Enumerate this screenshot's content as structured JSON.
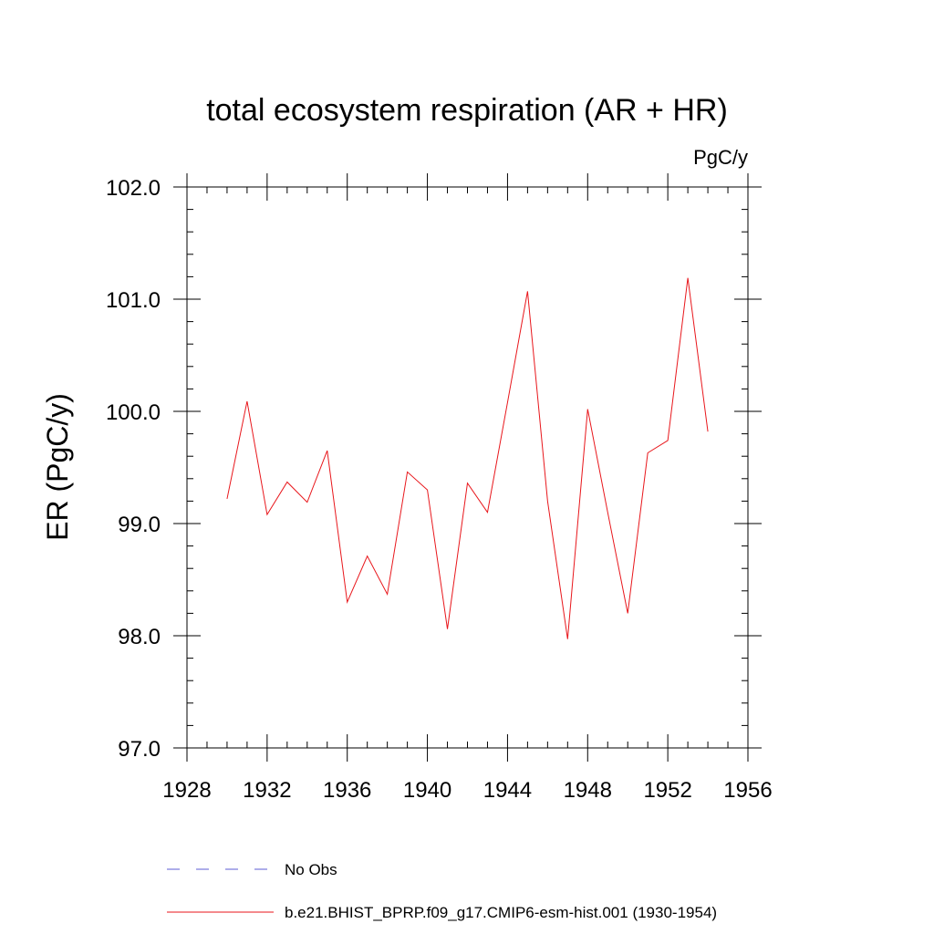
{
  "chart_data": {
    "type": "line",
    "title": "total ecosystem respiration (AR + HR)",
    "units": "PgC/y",
    "ylabel": "ER  (PgC/y)",
    "xlabel": "",
    "xlim": [
      1928,
      1956
    ],
    "ylim": [
      97.0,
      102.0
    ],
    "x_ticks": [
      1928,
      1932,
      1936,
      1940,
      1944,
      1948,
      1952,
      1956
    ],
    "x_tick_labels": [
      "1928",
      "1932",
      "1936",
      "1940",
      "1944",
      "1948",
      "1952",
      "1956"
    ],
    "y_ticks": [
      97.0,
      98.0,
      99.0,
      100.0,
      101.0,
      102.0
    ],
    "y_tick_labels": [
      "97.0",
      "98.0",
      "99.0",
      "100.0",
      "101.0",
      "102.0"
    ],
    "grid": false,
    "legend_position": "bottom",
    "series": [
      {
        "name": "No Obs",
        "color": "#5b5bd6",
        "style": "dashed",
        "x": [],
        "values": []
      },
      {
        "name": "b.e21.BHIST_BPRP.f09_g17.CMIP6-esm-hist.001 (1930-1954)",
        "color": "#e8161b",
        "style": "solid",
        "x": [
          1930,
          1931,
          1932,
          1933,
          1934,
          1935,
          1936,
          1937,
          1938,
          1939,
          1940,
          1941,
          1942,
          1943,
          1944,
          1945,
          1946,
          1947,
          1948,
          1949,
          1950,
          1951,
          1952,
          1953,
          1954
        ],
        "values": [
          99.22,
          100.09,
          99.08,
          99.37,
          99.19,
          99.65,
          98.3,
          98.71,
          98.37,
          99.46,
          99.3,
          98.06,
          99.36,
          99.1,
          100.08,
          101.07,
          99.2,
          97.97,
          100.02,
          99.1,
          98.2,
          99.63,
          99.74,
          101.19,
          99.82
        ]
      }
    ]
  }
}
